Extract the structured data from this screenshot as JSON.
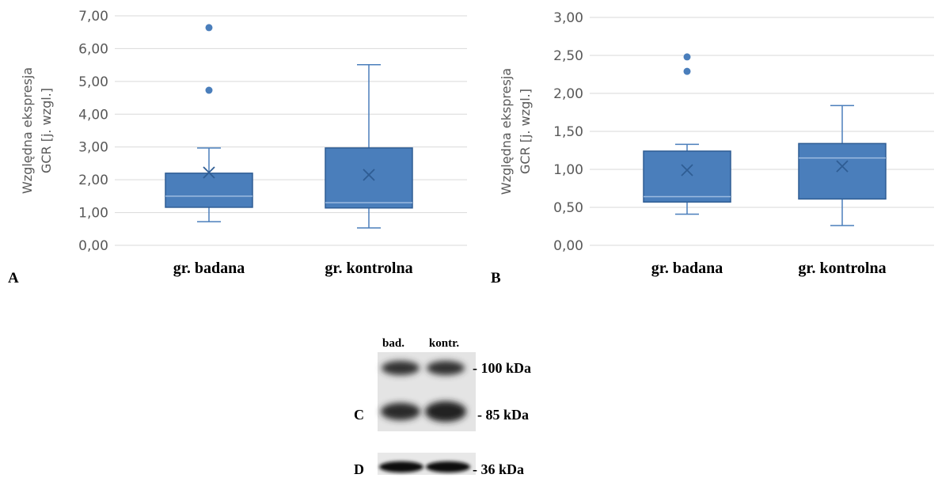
{
  "chart_data": [
    {
      "type": "box",
      "panel_label": "A",
      "y_label": [
        "Względna ekspresja",
        "GCR [j. wzgl.]"
      ],
      "categories": [
        "gr. badana",
        "gr. kontrolna"
      ],
      "color": "#4a7ebb",
      "boxes": [
        {
          "min": 0.72,
          "q1": 1.16,
          "median": 1.5,
          "q3": 2.2,
          "max": 2.97,
          "mean": 2.22,
          "outliers": [
            6.64,
            4.73
          ]
        },
        {
          "min": 0.53,
          "q1": 1.14,
          "median": 1.3,
          "q3": 2.97,
          "max": 5.51,
          "mean": 2.15,
          "outliers": []
        }
      ],
      "ylim": [
        0,
        7
      ],
      "grid": true,
      "yticks": [
        {
          "value": 0,
          "label": "0,00"
        },
        {
          "value": 1,
          "label": "1,00"
        },
        {
          "value": 2,
          "label": "2,00"
        },
        {
          "value": 3,
          "label": "3,00"
        },
        {
          "value": 4,
          "label": "4,00"
        },
        {
          "value": 5,
          "label": "5,00"
        },
        {
          "value": 6,
          "label": "6,00"
        },
        {
          "value": 7,
          "label": "7,00"
        }
      ]
    },
    {
      "type": "box",
      "panel_label": "B",
      "y_label": [
        "Względna ekspresja",
        "GCR [j. wzgl.]"
      ],
      "categories": [
        "gr. badana",
        "gr. kontrolna"
      ],
      "color": "#4a7ebb",
      "boxes": [
        {
          "min": 0.41,
          "q1": 0.57,
          "median": 0.64,
          "q3": 1.24,
          "max": 1.33,
          "mean": 0.99,
          "outliers": [
            2.48,
            2.29
          ]
        },
        {
          "min": 0.26,
          "q1": 0.61,
          "median": 1.15,
          "q3": 1.34,
          "max": 1.84,
          "mean": 1.04,
          "outliers": []
        }
      ],
      "ylim": [
        0,
        3
      ],
      "grid": true,
      "yticks": [
        {
          "value": 0,
          "label": "0,00"
        },
        {
          "value": 0.5,
          "label": "0,50"
        },
        {
          "value": 1,
          "label": "1,00"
        },
        {
          "value": 1.5,
          "label": "1,50"
        },
        {
          "value": 2,
          "label": "2,00"
        },
        {
          "value": 2.5,
          "label": "2,50"
        },
        {
          "value": 3,
          "label": "3,00"
        }
      ]
    }
  ],
  "blot": {
    "lanes": [
      "bad.",
      "kontr."
    ],
    "markers": [
      "- 100 kDa",
      "- 85 kDa",
      "- 36 kDa"
    ],
    "panel_labels": [
      "C",
      "D"
    ]
  }
}
